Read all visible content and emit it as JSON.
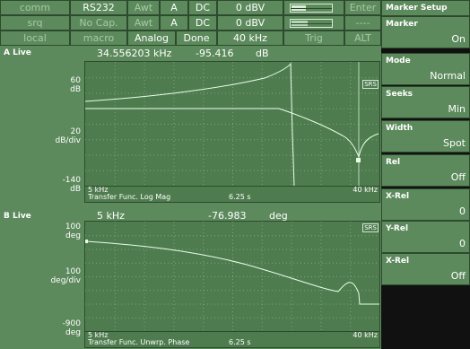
{
  "status_rows": [
    [
      "comm",
      "RS232",
      "Awt",
      "A",
      "DC",
      "0 dBV",
      "",
      "Enter"
    ],
    [
      "srq",
      "No Cap.",
      "Awt",
      "A",
      "DC",
      "0 dBV",
      "",
      "----"
    ],
    [
      "local",
      "macro",
      "Analog",
      "Done",
      "40 kHz",
      "",
      "Trig",
      "ALT"
    ]
  ],
  "channel_a": {
    "label": "A Live",
    "readout_freq": "34.556203 kHz",
    "readout_value": "-95.416",
    "readout_unit": "dB",
    "y_top": "60",
    "y_top_unit": "dB",
    "y_div": "20",
    "y_div_unit": "dB/div",
    "y_bottom": "-140",
    "y_bottom_unit": "dB",
    "x_start": "5 kHz",
    "x_end": "40 kHz",
    "measurement": "Transfer Func. Log Mag",
    "time": "6.25 s",
    "badge": "SRS"
  },
  "channel_b": {
    "label": "B Live",
    "readout_freq": "5 kHz",
    "readout_value": "-76.983",
    "readout_unit": "deg",
    "y_top": "100",
    "y_top_unit": "deg",
    "y_div": "100",
    "y_div_unit": "deg/div",
    "y_bottom": "-900",
    "y_bottom_unit": "deg",
    "x_start": "5 kHz",
    "x_end": "40 kHz",
    "measurement": "Transfer Func. Unwrp. Phase",
    "time": "6.25 s",
    "badge": "SRS"
  },
  "menu": {
    "title": "Marker Setup",
    "items": [
      {
        "label": "Marker",
        "value": "On"
      },
      {
        "label": "Mode",
        "value": "Normal"
      },
      {
        "label": "Seeks",
        "value": "Min"
      },
      {
        "label": "Width",
        "value": "Spot"
      },
      {
        "label": "Rel",
        "value": "Off"
      },
      {
        "label": "X-Rel",
        "value": "0"
      },
      {
        "label": "Y-Rel",
        "value": "0"
      },
      {
        "label": "X-Rel",
        "value": "Off"
      }
    ]
  },
  "colors": {
    "panel": "#5c8a5c",
    "plot_bg": "#4f7c4f",
    "trace": "#e8ffe8",
    "text": "#ffffff"
  }
}
